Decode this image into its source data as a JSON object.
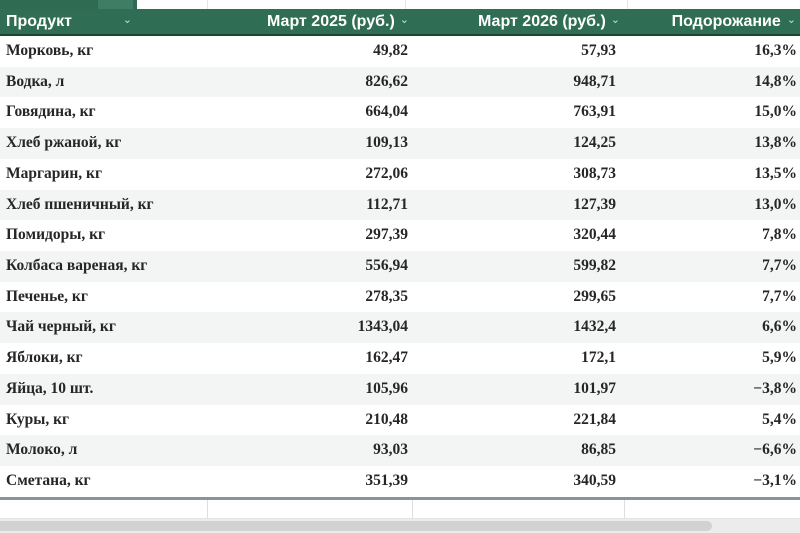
{
  "icons": {
    "dropdown": "⌄"
  },
  "colors": {
    "header_bg": "#2f6e55",
    "header_text": "#ffffff",
    "band_row_bg": "#f3f4f4",
    "body_text": "#262626",
    "scrollbar_thumb": "#d2d2d2"
  },
  "table": {
    "headers": [
      {
        "label": "Продукт"
      },
      {
        "label": "Март 2025 (руб.)"
      },
      {
        "label": "Март 2026 (руб.)"
      },
      {
        "label": "Подорожание"
      }
    ],
    "rows": [
      {
        "product": "Морковь, кг",
        "mar2025": "49,82",
        "mar2026": "57,93",
        "change": "16,3%"
      },
      {
        "product": "Водка, л",
        "mar2025": "826,62",
        "mar2026": "948,71",
        "change": "14,8%"
      },
      {
        "product": "Говядина, кг",
        "mar2025": "664,04",
        "mar2026": "763,91",
        "change": "15,0%"
      },
      {
        "product": "Хлеб ржаной, кг",
        "mar2025": "109,13",
        "mar2026": "124,25",
        "change": "13,8%"
      },
      {
        "product": "Маргарин, кг",
        "mar2025": "272,06",
        "mar2026": "308,73",
        "change": "13,5%"
      },
      {
        "product": "Хлеб пшеничный, кг",
        "mar2025": "112,71",
        "mar2026": "127,39",
        "change": "13,0%"
      },
      {
        "product": "Помидоры, кг",
        "mar2025": "297,39",
        "mar2026": "320,44",
        "change": "7,8%"
      },
      {
        "product": "Колбаса вареная, кг",
        "mar2025": "556,94",
        "mar2026": "599,82",
        "change": "7,7%"
      },
      {
        "product": "Печенье, кг",
        "mar2025": "278,35",
        "mar2026": "299,65",
        "change": "7,7%"
      },
      {
        "product": "Чай черный, кг",
        "mar2025": "1343,04",
        "mar2026": "1432,4",
        "change": "6,6%"
      },
      {
        "product": "Яблоки, кг",
        "mar2025": "162,47",
        "mar2026": "172,1",
        "change": "5,9%"
      },
      {
        "product": "Яйца, 10 шт.",
        "mar2025": "105,96",
        "mar2026": "101,97",
        "change": "−3,8%"
      },
      {
        "product": "Куры, кг",
        "mar2025": "210,48",
        "mar2026": "221,84",
        "change": "5,4%"
      },
      {
        "product": "Молоко, л",
        "mar2025": "93,03",
        "mar2026": "86,85",
        "change": "−6,6%"
      },
      {
        "product": "Сметана, кг",
        "mar2025": "351,39",
        "mar2026": "340,59",
        "change": "−3,1%"
      }
    ]
  }
}
